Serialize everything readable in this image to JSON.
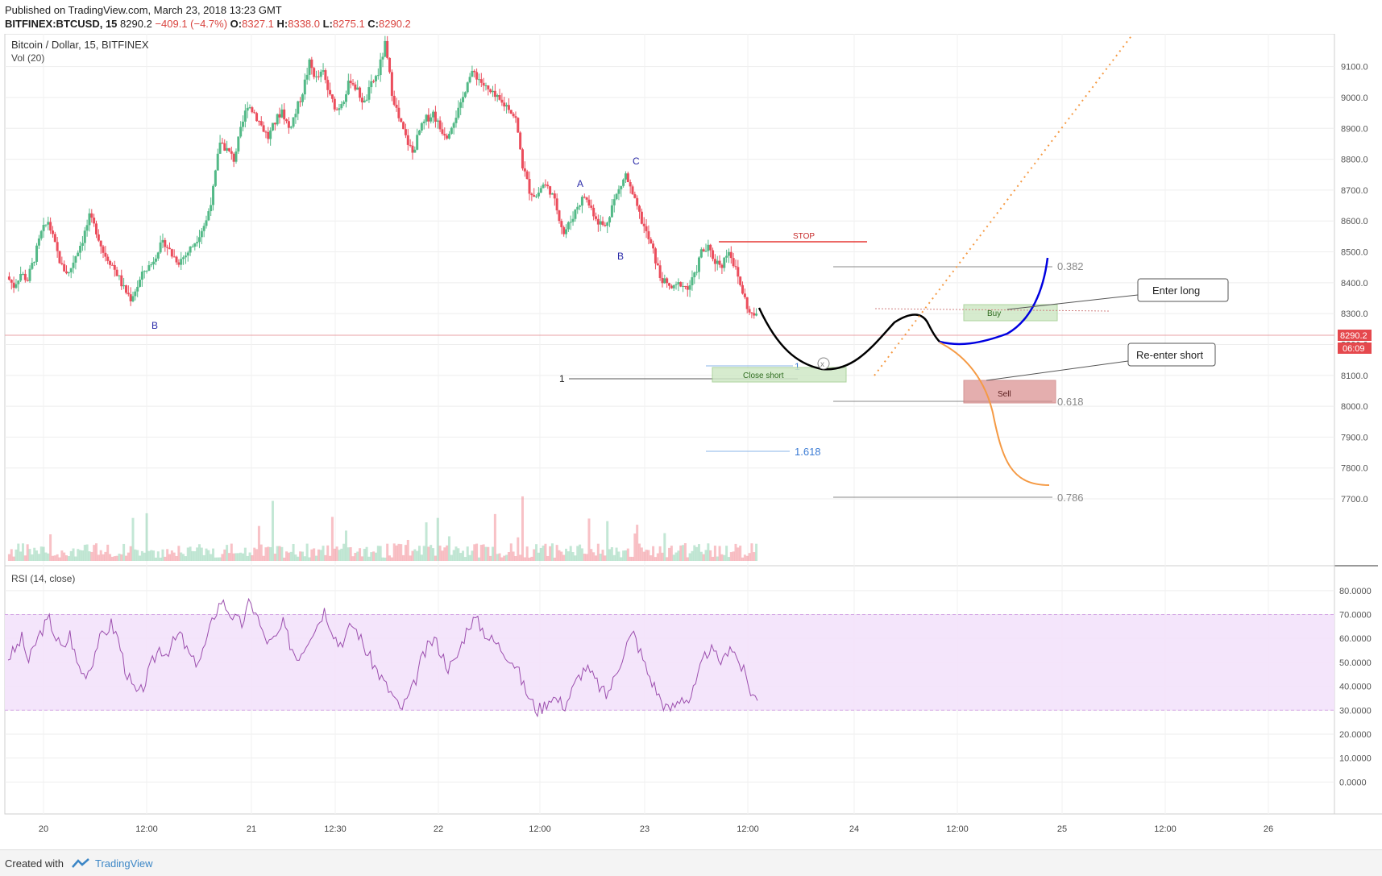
{
  "header": {
    "published": "Published on TradingView.com, March 23, 2018 13:23 GMT",
    "symbol": "BITFINEX:BTCUSD, 15",
    "last": "8290.2",
    "change": "−409.1 (−4.7%)",
    "o_label": "O:",
    "o_value": "8327.1",
    "h_label": "H:",
    "h_value": "8338.0",
    "l_label": "L:",
    "l_value": "8275.1",
    "c_label": "C:",
    "c_value": "8290.2"
  },
  "footer": {
    "created": "Created with",
    "brand": "TradingView"
  },
  "colors": {
    "up": "#53b987",
    "down": "#eb4d5c",
    "rsi_line": "#9c4fae",
    "rsi_band": "#f3e2fb",
    "price_tag": "#e5484d",
    "projection_long": "#0000e0",
    "projection_short": "#f59a44",
    "trend_dotted": "#f59a44"
  },
  "chart_data": [
    {
      "type": "candlestick",
      "title": "Bitcoin / Dollar, 15, BITFINEX",
      "indicator": "Vol (20)",
      "ylim": [
        7640,
        9180
      ],
      "y_ticks": [
        "9100.0",
        "9000.0",
        "8900.0",
        "8800.0",
        "8700.0",
        "8600.0",
        "8500.0",
        "8400.0",
        "8300.0",
        "8200.0",
        "8100.0",
        "8000.0",
        "7900.0",
        "7800.0",
        "7700.0"
      ],
      "x_ticks": [
        "20",
        "12:00",
        "21",
        "12:30",
        "22",
        "12:00",
        "23",
        "12:00",
        "24",
        "12:00",
        "25",
        "12:00",
        "26"
      ],
      "last_price": "8290.2",
      "countdown": "06:09",
      "series_close_path": [
        [
          0,
          8420
        ],
        [
          1,
          8390
        ],
        [
          2,
          8430
        ],
        [
          3,
          8410
        ],
        [
          4,
          8480
        ],
        [
          5,
          8560
        ],
        [
          6,
          8600
        ],
        [
          7,
          8520
        ],
        [
          8,
          8450
        ],
        [
          9,
          8430
        ],
        [
          10,
          8490
        ],
        [
          11,
          8540
        ],
        [
          12,
          8610
        ],
        [
          13,
          8570
        ],
        [
          14,
          8500
        ],
        [
          15,
          8470
        ],
        [
          16,
          8430
        ],
        [
          17,
          8380
        ],
        [
          18,
          8350
        ],
        [
          19,
          8390
        ],
        [
          20,
          8440
        ],
        [
          21,
          8460
        ],
        [
          22,
          8510
        ],
        [
          23,
          8530
        ],
        [
          24,
          8490
        ],
        [
          25,
          8470
        ],
        [
          26,
          8490
        ],
        [
          27,
          8520
        ],
        [
          28,
          8560
        ],
        [
          29,
          8600
        ],
        [
          30,
          8700
        ],
        [
          31,
          8860
        ],
        [
          32,
          8830
        ],
        [
          33,
          8800
        ],
        [
          34,
          8890
        ],
        [
          35,
          8980
        ],
        [
          36,
          8950
        ],
        [
          37,
          8910
        ],
        [
          38,
          8870
        ],
        [
          39,
          8920
        ],
        [
          40,
          8960
        ],
        [
          41,
          8900
        ],
        [
          42,
          8950
        ],
        [
          43,
          9020
        ],
        [
          44,
          9110
        ],
        [
          45,
          9060
        ],
        [
          46,
          9080
        ],
        [
          47,
          9000
        ],
        [
          48,
          8960
        ],
        [
          49,
          9000
        ],
        [
          50,
          9060
        ],
        [
          51,
          9020
        ],
        [
          52,
          8980
        ],
        [
          53,
          9040
        ],
        [
          54,
          9080
        ],
        [
          55,
          9170
        ],
        [
          56,
          9020
        ],
        [
          57,
          8930
        ],
        [
          58,
          8870
        ],
        [
          59,
          8820
        ],
        [
          60,
          8890
        ],
        [
          61,
          8930
        ],
        [
          62,
          8950
        ],
        [
          63,
          8900
        ],
        [
          64,
          8880
        ],
        [
          65,
          8930
        ],
        [
          66,
          8970
        ],
        [
          67,
          9060
        ],
        [
          68,
          9080
        ],
        [
          69,
          9050
        ],
        [
          70,
          9020
        ],
        [
          71,
          9000
        ],
        [
          72,
          8980
        ],
        [
          73,
          8970
        ],
        [
          74,
          8930
        ],
        [
          75,
          8780
        ],
        [
          76,
          8700
        ],
        [
          77,
          8680
        ],
        [
          78,
          8720
        ],
        [
          79,
          8700
        ],
        [
          80,
          8640
        ],
        [
          81,
          8560
        ],
        [
          82,
          8600
        ],
        [
          83,
          8650
        ],
        [
          84,
          8680
        ],
        [
          85,
          8640
        ],
        [
          86,
          8600
        ],
        [
          87,
          8580
        ],
        [
          88,
          8650
        ],
        [
          89,
          8700
        ],
        [
          90,
          8750
        ],
        [
          91,
          8680
        ],
        [
          92,
          8620
        ],
        [
          93,
          8560
        ],
        [
          94,
          8500
        ],
        [
          95,
          8420
        ],
        [
          96,
          8390
        ],
        [
          97,
          8380
        ],
        [
          98,
          8400
        ],
        [
          99,
          8380
        ],
        [
          100,
          8420
        ],
        [
          101,
          8500
        ],
        [
          102,
          8510
        ],
        [
          103,
          8470
        ],
        [
          104,
          8460
        ],
        [
          105,
          8510
        ],
        [
          106,
          8440
        ],
        [
          107,
          8370
        ],
        [
          108,
          8300
        ],
        [
          109,
          8290
        ]
      ],
      "volume_max_label": "",
      "annotations": {
        "wave_labels": [
          "B",
          "A",
          "B",
          "C"
        ],
        "stop_label": "STOP",
        "fib_levels": [
          "0.382",
          "0.618",
          "0.786"
        ],
        "fib_ext": [
          "1",
          "1.618"
        ],
        "fib_one_left": "1",
        "boxes": [
          "Close short",
          "Buy",
          "Sell"
        ],
        "callouts": [
          "Enter long",
          "Re-enter short"
        ]
      }
    },
    {
      "type": "line",
      "title": "RSI (14, close)",
      "ylim": [
        -10,
        85
      ],
      "y_ticks": [
        "80.0000",
        "70.0000",
        "60.0000",
        "50.0000",
        "40.0000",
        "30.0000",
        "20.0000",
        "10.0000",
        "0.0000"
      ],
      "band": [
        30,
        70
      ],
      "values": [
        52,
        55,
        60,
        50,
        58,
        64,
        68,
        60,
        55,
        62,
        50,
        45,
        48,
        58,
        62,
        66,
        60,
        48,
        40,
        36,
        42,
        50,
        56,
        54,
        58,
        62,
        55,
        50,
        52,
        60,
        70,
        76,
        72,
        68,
        66,
        74,
        72,
        62,
        58,
        60,
        66,
        58,
        52,
        56,
        62,
        66,
        72,
        65,
        58,
        60,
        66,
        62,
        55,
        50,
        45,
        40,
        36,
        30,
        34,
        40,
        50,
        56,
        60,
        54,
        48,
        50,
        58,
        66,
        68,
        64,
        60,
        58,
        55,
        52,
        48,
        40,
        34,
        30,
        32,
        36,
        34,
        32,
        38,
        44,
        48,
        44,
        40,
        36,
        42,
        50,
        58,
        62,
        54,
        46,
        40,
        34,
        30,
        32,
        36,
        34,
        40,
        50,
        56,
        52,
        50,
        58,
        52,
        46,
        38,
        34
      ]
    }
  ]
}
